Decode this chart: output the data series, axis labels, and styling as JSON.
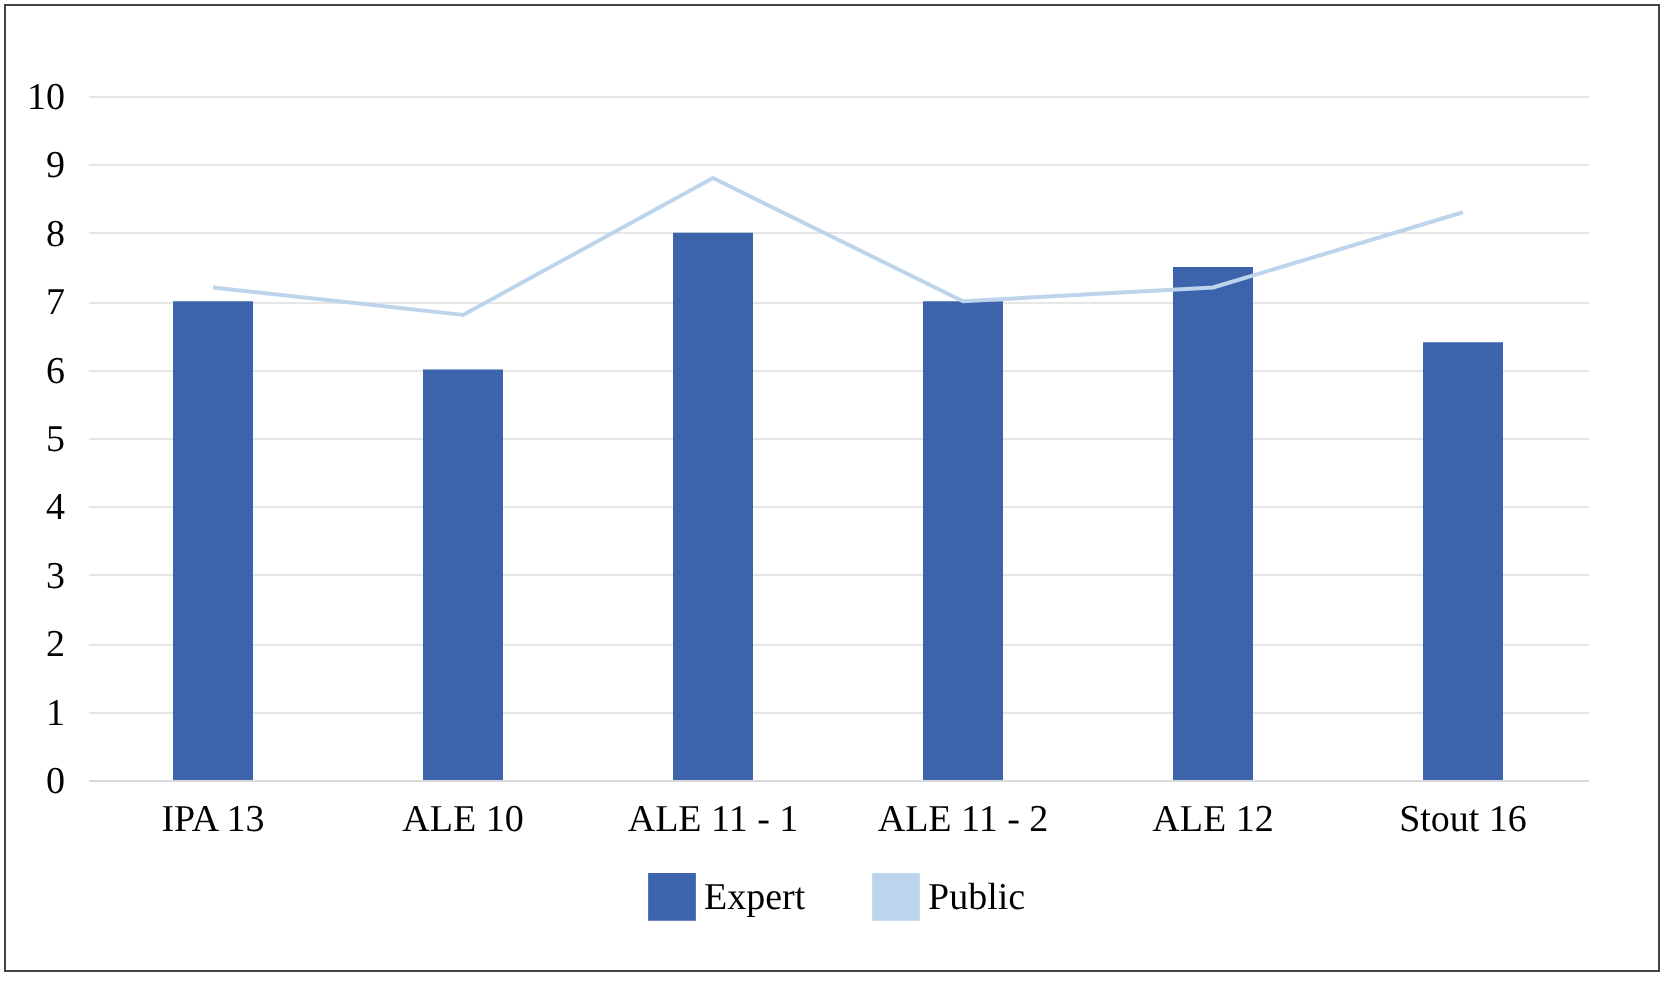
{
  "chart_data": {
    "type": "bar",
    "categories": [
      "IPA 13",
      "ALE 10",
      "ALE 11 - 1",
      "ALE 11 - 2",
      "ALE 12",
      "Stout 16"
    ],
    "series": [
      {
        "name": "Expert",
        "color": "#3c63ac",
        "values": [
          7,
          6,
          8,
          7,
          7.5,
          6.4
        ]
      },
      {
        "name": "Public",
        "type": "line",
        "color": "#bcd4ec",
        "values": [
          7.2,
          6.8,
          8.8,
          7,
          7.2,
          8.3
        ]
      }
    ],
    "ylim": [
      0,
      10
    ],
    "yticks": [
      0,
      1,
      2,
      3,
      4,
      5,
      6,
      7,
      8,
      9,
      10
    ],
    "grid": "y",
    "legend": "bottom"
  }
}
